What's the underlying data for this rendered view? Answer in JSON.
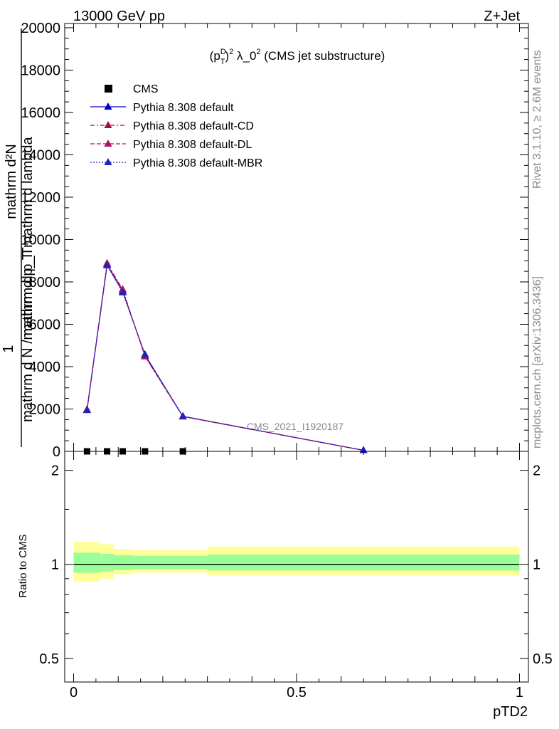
{
  "header": {
    "left": "13000 GeV pp",
    "right": "Z+Jet"
  },
  "side_labels": {
    "rivet": "Rivet 3.1.10, ≥ 2.6M events",
    "mcplots": "mcplots.cern.ch [arXiv:1306.3436]"
  },
  "watermark": "CMS_2021_I1920187",
  "chart_data": [
    {
      "type": "line",
      "title": "(p_T^D)^2 λ_0^2 (CMS jet substructure)",
      "title_parts": {
        "open": "(p",
        "sup": "D",
        "sub": "T",
        "exp": "2",
        "rest": " λ_0",
        "rest_exp": "2",
        "tail": " (CMS jet substructure)"
      },
      "ylabel_top": "mathrm d²N",
      "ylabel_mid": "mathrm d p_T mathrm d lambda",
      "ylabel_one": "1",
      "ylabel_bottom": "mathrm d N / mathrm d p_T",
      "xlim": [
        -0.02,
        1.02
      ],
      "ylim": [
        0,
        20200
      ],
      "y_ticks": [
        0,
        2000,
        4000,
        6000,
        8000,
        10000,
        12000,
        14000,
        16000,
        18000,
        20000
      ],
      "y_tick_labels": [
        "0",
        "2000",
        "4000",
        "6000",
        "8000",
        "10000",
        "12000",
        "14000",
        "16000",
        "18000",
        "20000"
      ],
      "legend_position": "top-left",
      "series": [
        {
          "name": "CMS",
          "marker": "square",
          "color": "#000000",
          "dash": "none",
          "x": [
            0.03,
            0.075,
            0.11,
            0.16,
            0.245
          ],
          "y": [
            0,
            0,
            0,
            0,
            0
          ]
        },
        {
          "name": "Pythia 8.308 default",
          "marker": "triangle",
          "color": "#0000cc",
          "dash": "none",
          "x": [
            0.03,
            0.075,
            0.11,
            0.16,
            0.245,
            0.65
          ],
          "y": [
            1950,
            8800,
            7550,
            4550,
            1650,
            50
          ]
        },
        {
          "name": "Pythia 8.308 default-CD",
          "marker": "triangle",
          "color": "#a01040",
          "dash": "6,3,2,3",
          "x": [
            0.03,
            0.075,
            0.11,
            0.16,
            0.245,
            0.65
          ],
          "y": [
            1980,
            8880,
            7650,
            4480,
            1640,
            50
          ]
        },
        {
          "name": "Pythia 8.308 default-DL",
          "marker": "triangle",
          "color": "#b01060",
          "dash": "6,3",
          "x": [
            0.03,
            0.075,
            0.11,
            0.16,
            0.245,
            0.65
          ],
          "y": [
            1960,
            8850,
            7600,
            4500,
            1650,
            50
          ]
        },
        {
          "name": "Pythia 8.308 default-MBR",
          "marker": "triangle",
          "color": "#2020bb",
          "dash": "2,2",
          "x": [
            0.03,
            0.075,
            0.11,
            0.16,
            0.245,
            0.65
          ],
          "y": [
            1940,
            8780,
            7500,
            4580,
            1660,
            50
          ]
        }
      ]
    },
    {
      "type": "area",
      "ylabel": "Ratio to CMS",
      "xlabel": "pTD2",
      "xlim": [
        -0.02,
        1.02
      ],
      "ylim": [
        0.42,
        2.3
      ],
      "log_scale_y": true,
      "x_ticks": [
        0,
        0.5,
        1
      ],
      "x_tick_labels": [
        "0",
        "0.5",
        "1"
      ],
      "y_ticks": [
        0.5,
        1,
        2
      ],
      "y_tick_labels": [
        "0.5",
        "1",
        "2"
      ],
      "bins_edges": [
        0,
        0.06,
        0.09,
        0.13,
        0.19,
        0.3,
        1.0
      ],
      "band_yellow": [
        [
          0.88,
          1.18
        ],
        [
          0.9,
          1.16
        ],
        [
          0.93,
          1.12
        ],
        [
          0.94,
          1.11
        ],
        [
          0.94,
          1.11
        ],
        [
          0.92,
          1.14
        ]
      ],
      "band_green": [
        [
          0.94,
          1.09
        ],
        [
          0.95,
          1.08
        ],
        [
          0.96,
          1.07
        ],
        [
          0.965,
          1.065
        ],
        [
          0.965,
          1.065
        ],
        [
          0.955,
          1.075
        ]
      ],
      "colors": {
        "yellow": "#ffff99",
        "green": "#99ff99"
      }
    }
  ]
}
